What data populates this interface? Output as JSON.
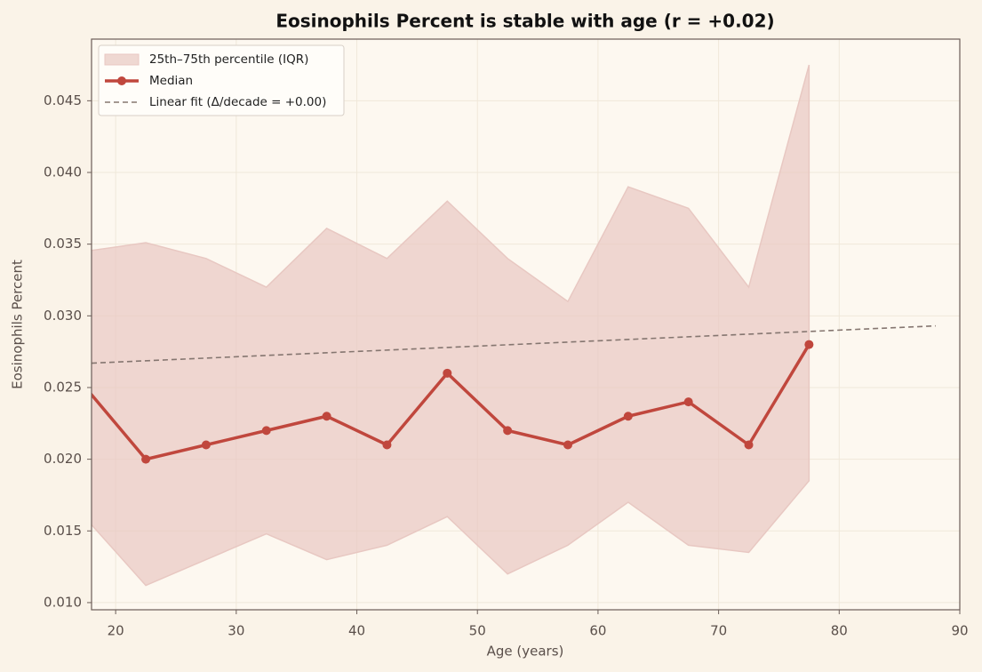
{
  "chart_data": {
    "type": "line",
    "title": "Eosinophils Percent is stable with age (r = +0.02)",
    "xlabel": "Age (years)",
    "ylabel": "Eosinophils Percent",
    "x": [
      17.5,
      22.5,
      27.5,
      32.5,
      37.5,
      42.5,
      47.5,
      52.5,
      57.5,
      62.5,
      67.5,
      72.5,
      77.5
    ],
    "series": [
      {
        "name": "Median",
        "color": "#c0473d",
        "values": [
          0.025,
          0.02,
          0.021,
          0.022,
          0.023,
          0.021,
          0.026,
          0.022,
          0.021,
          0.023,
          0.024,
          0.021,
          0.028
        ]
      }
    ],
    "band": {
      "name": "25th–75th percentile (IQR)",
      "color": "#e8c8c2",
      "upper": [
        0.0345,
        0.0351,
        0.034,
        0.032,
        0.0361,
        0.034,
        0.038,
        0.034,
        0.031,
        0.039,
        0.0375,
        0.032,
        0.0475
      ],
      "lower": [
        0.0159,
        0.0112,
        0.013,
        0.0148,
        0.013,
        0.014,
        0.016,
        0.012,
        0.014,
        0.017,
        0.014,
        0.0135,
        0.0185
      ]
    },
    "fit": {
      "name": "Linear fit (Δ/decade = +0.00)",
      "color": "#857670",
      "x": [
        18,
        88
      ],
      "values": [
        0.0267,
        0.0293
      ]
    },
    "xlim": [
      18,
      90
    ],
    "ylim": [
      0.0095,
      0.0493
    ],
    "xticks": [
      20,
      30,
      40,
      50,
      60,
      70,
      80,
      90
    ],
    "yticks": [
      {
        "value": 0.01,
        "label": "0.010"
      },
      {
        "value": 0.015,
        "label": "0.015"
      },
      {
        "value": 0.02,
        "label": "0.020"
      },
      {
        "value": 0.025,
        "label": "0.025"
      },
      {
        "value": 0.03,
        "label": "0.030"
      },
      {
        "value": 0.035,
        "label": "0.035"
      },
      {
        "value": 0.04,
        "label": "0.040"
      },
      {
        "value": 0.045,
        "label": "0.045"
      }
    ],
    "grid": true,
    "legend": "upper left"
  }
}
